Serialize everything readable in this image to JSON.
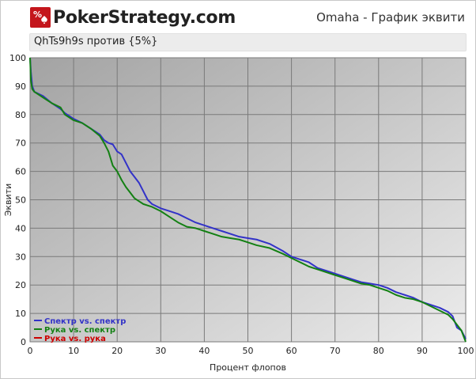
{
  "header": {
    "logo_text": "PokerStrategy.com",
    "page_title": "Omaha - График эквити"
  },
  "subtitle": "QhTs9h9s против {5%}",
  "colors": {
    "brand_red": "#c4161c",
    "series_range_vs_range": "#3232c8",
    "series_hand_vs_range": "#138013",
    "series_hand_vs_hand": "#cc0000"
  },
  "chart_data": {
    "type": "line",
    "title": "Omaha - График эквити",
    "subtitle": "QhTs9h9s против {5%}",
    "xlabel": "Процент флопов",
    "ylabel": "Эквити",
    "xlim": [
      0,
      100
    ],
    "ylim": [
      0,
      100
    ],
    "xticks": [
      0,
      10,
      20,
      30,
      40,
      50,
      60,
      70,
      80,
      90,
      100
    ],
    "yticks": [
      0,
      10,
      20,
      30,
      40,
      50,
      60,
      70,
      80,
      90,
      100
    ],
    "grid": true,
    "legend_position": "bottom-left",
    "series": [
      {
        "name": "Спектр vs. спектр",
        "color": "#3232c8",
        "x": [
          0,
          0.2,
          0.5,
          1,
          3,
          5,
          7,
          8,
          10,
          12,
          14,
          16,
          17,
          18,
          19,
          20,
          21,
          22,
          23,
          24,
          25,
          26,
          27,
          28,
          30,
          32,
          34,
          36,
          38,
          40,
          42,
          44,
          46,
          48,
          50,
          52,
          55,
          58,
          60,
          62,
          64,
          66,
          68,
          70,
          72,
          74,
          76,
          78,
          80,
          82,
          84,
          86,
          88,
          90,
          92,
          94,
          96,
          97,
          98,
          99,
          100
        ],
        "y": [
          100,
          95,
          90,
          88,
          86.5,
          84,
          82,
          80.5,
          78.5,
          77,
          75,
          73,
          71,
          70,
          69.5,
          67,
          66,
          63,
          60,
          58,
          56,
          53,
          50,
          48.5,
          47,
          46,
          45,
          43.5,
          42,
          41,
          40,
          39,
          38,
          37,
          36.5,
          36,
          34.5,
          32,
          30,
          29,
          28,
          26,
          25,
          24,
          23,
          22,
          21,
          20.5,
          20,
          19,
          17.5,
          16.5,
          15.5,
          14,
          13,
          12,
          10.5,
          9,
          5,
          4,
          1
        ]
      },
      {
        "name": "Рука vs. спектр",
        "color": "#138013",
        "x": [
          0,
          0.2,
          0.5,
          1,
          3,
          5,
          7,
          8,
          10,
          12,
          14,
          16,
          17,
          18,
          19,
          20,
          21,
          22,
          23,
          24,
          25,
          26,
          27,
          28,
          30,
          32,
          34,
          36,
          38,
          40,
          42,
          44,
          46,
          48,
          50,
          52,
          55,
          58,
          60,
          62,
          64,
          66,
          68,
          70,
          72,
          74,
          76,
          78,
          80,
          82,
          84,
          86,
          88,
          90,
          92,
          94,
          96,
          97,
          98,
          99,
          100
        ],
        "y": [
          100,
          92,
          89,
          88,
          86,
          84,
          82.5,
          80,
          78,
          77,
          75,
          72.5,
          70,
          67,
          62,
          60,
          57,
          54.5,
          52.5,
          50.5,
          49.5,
          48.5,
          48,
          47.5,
          46,
          44,
          42,
          40.5,
          40,
          39,
          38,
          37,
          36.5,
          36,
          35,
          34,
          33,
          31,
          29.5,
          28,
          26.5,
          25.5,
          24.5,
          23.5,
          22.5,
          21.5,
          20.5,
          20,
          19,
          18,
          16.5,
          15.5,
          15,
          14,
          12.5,
          11,
          9.5,
          8,
          6,
          4,
          0
        ]
      },
      {
        "name": "Рука vs. рука",
        "color": "#cc0000",
        "x": [],
        "y": []
      }
    ]
  }
}
